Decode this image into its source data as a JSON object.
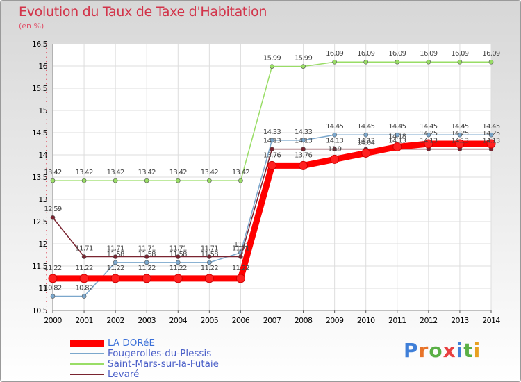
{
  "chart_data": {
    "type": "line",
    "title": "Evolution du Taux de Taxe d'Habitation",
    "subtitle": "(en %)",
    "xlabel": "",
    "ylabel": "",
    "x": [
      "2000",
      "2001",
      "2002",
      "2003",
      "2004",
      "2005",
      "2006",
      "2007",
      "2008",
      "2009",
      "2010",
      "2011",
      "2012",
      "2013",
      "2014"
    ],
    "ylim": [
      10.5,
      16.5
    ],
    "yticks": [
      "10.5",
      "11",
      "11.5",
      "12",
      "12.5",
      "13",
      "13.5",
      "14",
      "14.5",
      "15",
      "15.5",
      "16",
      "16.5"
    ],
    "grid": true,
    "legend_position": "bottom-left",
    "series": [
      {
        "name": "LA DORéE",
        "color": "#ff0000",
        "values": [
          11.22,
          11.22,
          11.22,
          11.22,
          11.22,
          11.22,
          11.22,
          13.76,
          13.76,
          13.9,
          14.04,
          14.18,
          14.25,
          14.25,
          14.25
        ],
        "labels": [
          "11.22",
          "11.22",
          "11.22",
          "11.22",
          "11.22",
          "11.22",
          "11.22",
          "13.76",
          "13.76",
          "13.9",
          "14.04",
          "14.18",
          "14.25",
          "14.25",
          "14.25"
        ]
      },
      {
        "name": "Fougerolles-du-Plessis",
        "color": "#7ba7cc",
        "values": [
          10.82,
          10.82,
          11.58,
          11.58,
          11.58,
          11.58,
          11.8,
          14.33,
          14.33,
          14.45,
          14.45,
          14.45,
          14.45,
          14.45,
          14.45
        ],
        "labels": [
          "10.82",
          "10.82",
          "11.58",
          "11.58",
          "11.58",
          "11.58",
          "11.8",
          "14.33",
          "14.33",
          "14.45",
          "14.45",
          "14.45",
          "14.45",
          "14.45",
          "14.45"
        ]
      },
      {
        "name": "Saint-Mars-sur-la-Futaie",
        "color": "#99dd66",
        "values": [
          13.42,
          13.42,
          13.42,
          13.42,
          13.42,
          13.42,
          13.42,
          15.99,
          15.99,
          16.09,
          16.09,
          16.09,
          16.09,
          16.09,
          16.09
        ],
        "labels": [
          "13.42",
          "13.42",
          "13.42",
          "13.42",
          "13.42",
          "13.42",
          "13.42",
          "15.99",
          "15.99",
          "16.09",
          "16.09",
          "16.09",
          "16.09",
          "16.09",
          "16.09"
        ]
      },
      {
        "name": "Levaré",
        "color": "#7a2430",
        "values": [
          12.59,
          11.71,
          11.71,
          11.71,
          11.71,
          11.71,
          11.71,
          14.13,
          14.13,
          14.13,
          14.13,
          14.13,
          14.13,
          14.13,
          14.13
        ],
        "labels": [
          "12.59",
          "11.71",
          "11.71",
          "11.71",
          "11.71",
          "11.71",
          "11.71",
          "14.13",
          "14.13",
          "14.13",
          "14.13",
          "14.13",
          "14.13",
          "14.13",
          "14.13"
        ]
      }
    ]
  },
  "logo": {
    "text": "Proxiti"
  }
}
